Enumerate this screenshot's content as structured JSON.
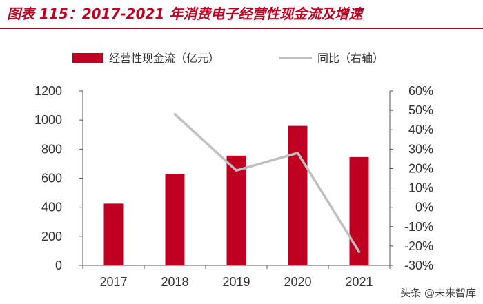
{
  "header": {
    "title": "图表 115：2017-2021 年消费电子经营性现金流及增速"
  },
  "watermark": "头条 @未来智库",
  "chart_data": {
    "type": "bar",
    "categories": [
      "2017",
      "2018",
      "2019",
      "2020",
      "2021"
    ],
    "series": [
      {
        "name": "经营性现金流（亿元）",
        "type": "bar",
        "axis": "left",
        "color": "#c00022",
        "values": [
          425,
          630,
          755,
          960,
          745
        ]
      },
      {
        "name": "同比（右轴）",
        "type": "line",
        "axis": "right",
        "color": "#bfbfbf",
        "values": [
          null,
          48,
          19,
          28,
          -23
        ]
      }
    ],
    "ylim": [
      0,
      1200
    ],
    "yticks": [
      "0",
      "200",
      "400",
      "600",
      "800",
      "1000",
      "1200"
    ],
    "y2lim": [
      -30,
      60
    ],
    "y2ticks": [
      "-30%",
      "-20%",
      "-10%",
      "0%",
      "10%",
      "20%",
      "30%",
      "40%",
      "50%",
      "60%"
    ],
    "legend_position": "top",
    "grid": false
  }
}
